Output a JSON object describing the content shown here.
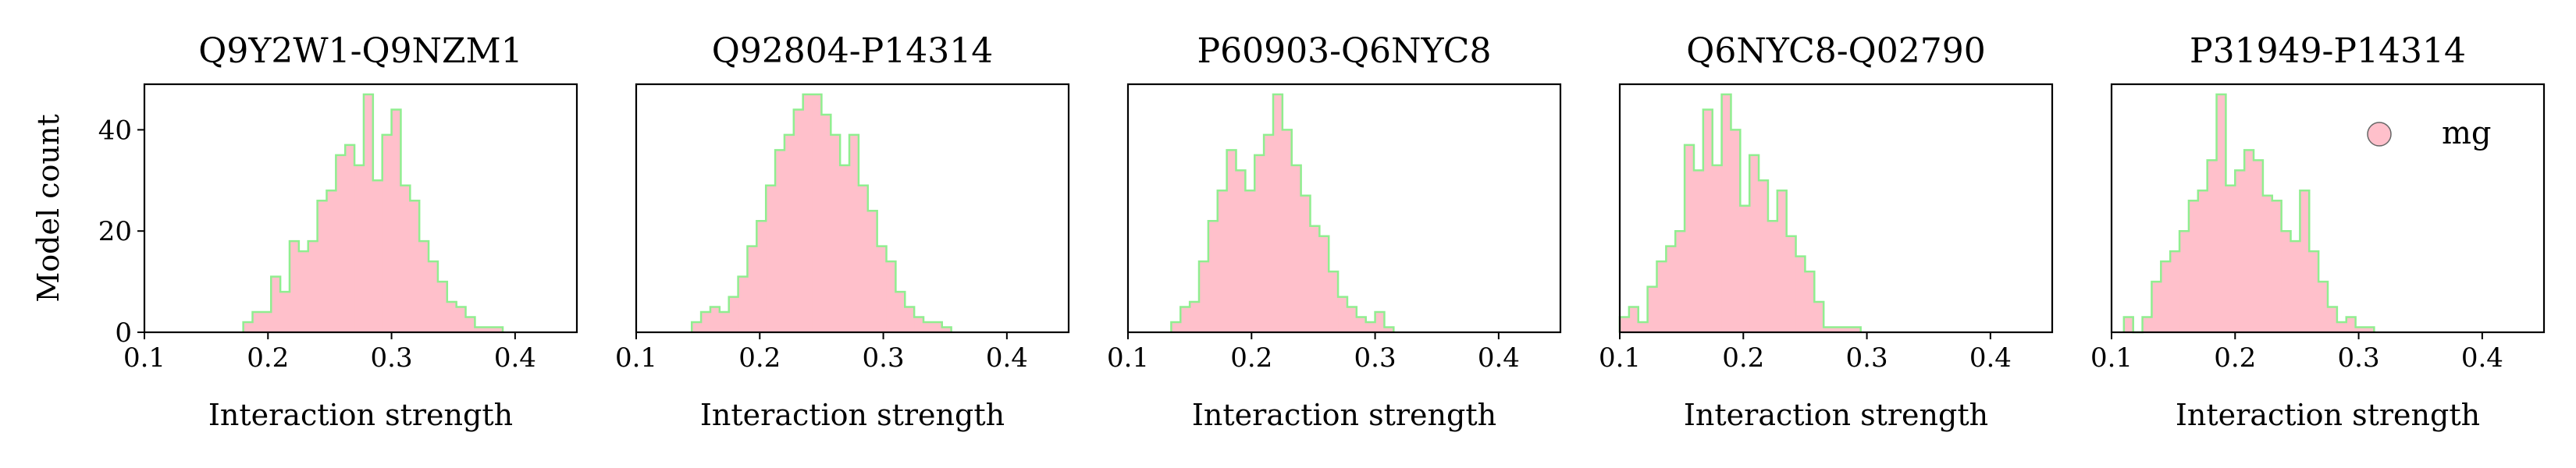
{
  "colors": {
    "fill": "#FFC0CB",
    "edge": "#90EE90",
    "axis": "#000000"
  },
  "chart_data": [
    {
      "type": "histogram",
      "title": "Q9Y2W1-Q9NZM1",
      "xlabel": "Interaction strength",
      "ylabel": "Model count",
      "xlim": [
        0.1,
        0.45
      ],
      "ylim": [
        0,
        49
      ],
      "xticks": [
        0.1,
        0.2,
        0.3,
        0.4
      ],
      "yticks": [
        0,
        20,
        40
      ],
      "bin_start": 0.18,
      "bin_width": 0.0075,
      "counts": [
        2,
        4,
        4,
        11,
        8,
        18,
        16,
        18,
        26,
        28,
        35,
        37,
        33,
        47,
        30,
        39,
        44,
        29,
        26,
        18,
        14,
        10,
        6,
        5,
        3,
        1,
        1,
        1
      ]
    },
    {
      "type": "histogram",
      "title": "Q92804-P14314",
      "xlabel": "Interaction strength",
      "xlim": [
        0.1,
        0.45
      ],
      "ylim": [
        0,
        49
      ],
      "xticks": [
        0.1,
        0.2,
        0.3,
        0.4
      ],
      "bin_start": 0.145,
      "bin_width": 0.0075,
      "counts": [
        2,
        4,
        5,
        4,
        7,
        11,
        17,
        22,
        29,
        36,
        39,
        44,
        47,
        47,
        43,
        39,
        33,
        39,
        29,
        24,
        17,
        14,
        8,
        5,
        3,
        2,
        2,
        1
      ]
    },
    {
      "type": "histogram",
      "title": "P60903-Q6NYC8",
      "xlabel": "Interaction strength",
      "xlim": [
        0.1,
        0.45
      ],
      "ylim": [
        0,
        49
      ],
      "xticks": [
        0.1,
        0.2,
        0.3,
        0.4
      ],
      "bin_start": 0.135,
      "bin_width": 0.0075,
      "counts": [
        2,
        5,
        6,
        14,
        22,
        28,
        36,
        32,
        28,
        35,
        39,
        47,
        40,
        33,
        27,
        21,
        19,
        12,
        7,
        5,
        3,
        2,
        4,
        1
      ]
    },
    {
      "type": "histogram",
      "title": "Q6NYC8-Q02790",
      "xlabel": "Interaction strength",
      "xlim": [
        0.1,
        0.45
      ],
      "ylim": [
        0,
        49
      ],
      "xticks": [
        0.1,
        0.2,
        0.3,
        0.4
      ],
      "bin_start": 0.1,
      "bin_width": 0.0075,
      "counts": [
        3,
        5,
        2,
        9,
        14,
        17,
        20,
        37,
        32,
        44,
        33,
        47,
        40,
        25,
        35,
        30,
        22,
        28,
        19,
        15,
        12,
        6,
        1,
        1,
        1,
        1
      ]
    },
    {
      "type": "histogram",
      "title": "P31949-P14314",
      "xlabel": "Interaction strength",
      "xlim": [
        0.1,
        0.45
      ],
      "ylim": [
        0,
        49
      ],
      "xticks": [
        0.1,
        0.2,
        0.3,
        0.4
      ],
      "bin_start": 0.11,
      "bin_width": 0.0075,
      "counts": [
        3,
        0,
        3,
        10,
        14,
        16,
        20,
        26,
        28,
        34,
        47,
        29,
        32,
        36,
        34,
        27,
        26,
        20,
        18,
        28,
        16,
        10,
        5,
        2,
        3,
        1,
        1
      ]
    }
  ],
  "legend": {
    "label": "mg"
  }
}
